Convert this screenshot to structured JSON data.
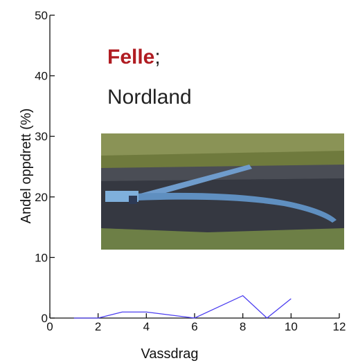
{
  "chart_data": {
    "type": "line",
    "x": [
      1,
      2,
      3,
      4,
      6,
      8,
      9,
      10
    ],
    "series": [
      {
        "color": "#4a3cf0",
        "values": [
          0,
          0,
          1,
          1,
          0,
          3.7,
          0,
          3.2
        ]
      }
    ],
    "xlim": [
      0,
      12
    ],
    "xticks": [
      0,
      2,
      4,
      6,
      8,
      10,
      12
    ],
    "ylim": [
      0,
      50
    ],
    "yticks": [
      0,
      10,
      20,
      30,
      40,
      50
    ],
    "xlabel": "Vassdrag",
    "ylabel": "Andel oppdrett (%)",
    "annotations": [
      {
        "text": "Felle",
        "color": "#b01c22"
      },
      {
        "text": ";",
        "color": "#222222"
      },
      {
        "text": "Nordland",
        "color": "#222222"
      }
    ]
  }
}
